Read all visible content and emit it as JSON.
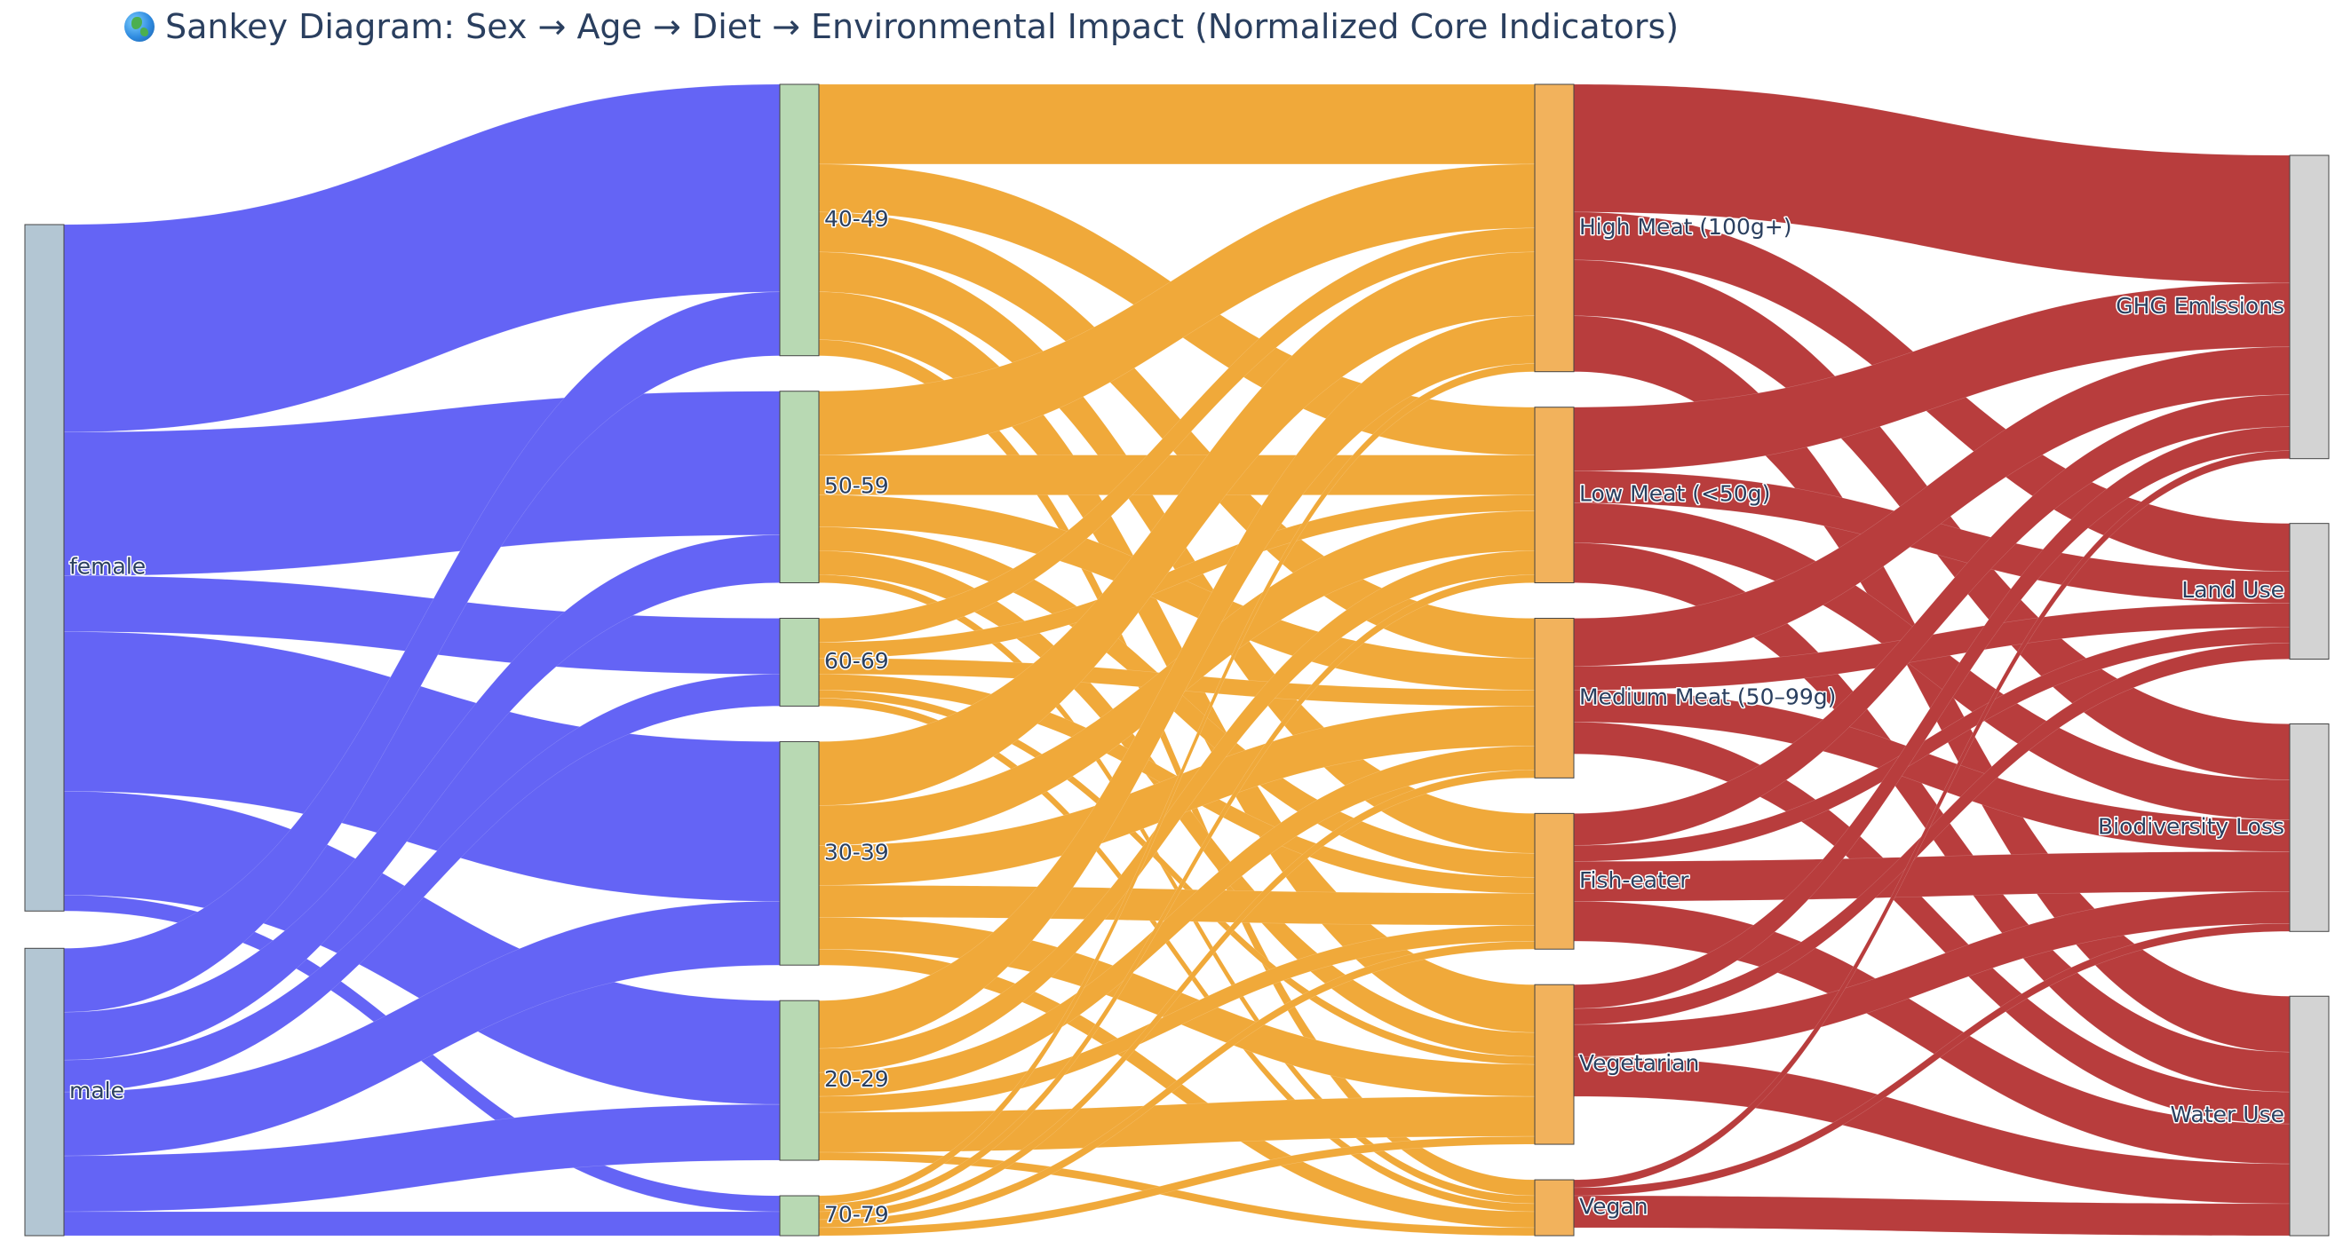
{
  "title": "Sankey Diagram: Sex → Age → Diet → Environmental Impact (Normalized Core Indicators)",
  "title_icon": "globe-icon",
  "chart_data": {
    "type": "sankey",
    "title": "Sankey Diagram: Sex → Age → Diet → Environmental Impact (Normalized Core Indicators)",
    "nodes": [
      {
        "id": "female",
        "label": "female",
        "column": 0,
        "color": "#b3c6d3"
      },
      {
        "id": "male",
        "label": "male",
        "column": 0,
        "color": "#b3c6d3"
      },
      {
        "id": "40-49",
        "label": "40-49",
        "column": 1,
        "color": "#b8d9b3"
      },
      {
        "id": "50-59",
        "label": "50-59",
        "column": 1,
        "color": "#b8d9b3"
      },
      {
        "id": "60-69",
        "label": "60-69",
        "column": 1,
        "color": "#b8d9b3"
      },
      {
        "id": "30-39",
        "label": "30-39",
        "column": 1,
        "color": "#b8d9b3"
      },
      {
        "id": "20-29",
        "label": "20-29",
        "column": 1,
        "color": "#b8d9b3"
      },
      {
        "id": "70-79",
        "label": "70-79",
        "column": 1,
        "color": "#b8d9b3"
      },
      {
        "id": "high",
        "label": "High Meat (100g+)",
        "column": 2,
        "color": "#f2b25c"
      },
      {
        "id": "low",
        "label": "Low Meat (<50g)",
        "column": 2,
        "color": "#f2b25c"
      },
      {
        "id": "medium",
        "label": "Medium Meat (50–99g)",
        "column": 2,
        "color": "#f2b25c"
      },
      {
        "id": "fish",
        "label": "Fish-eater",
        "column": 2,
        "color": "#f2b25c"
      },
      {
        "id": "veg",
        "label": "Vegetarian",
        "column": 2,
        "color": "#f2b25c"
      },
      {
        "id": "vegan",
        "label": "Vegan",
        "column": 2,
        "color": "#f2b25c"
      },
      {
        "id": "ghg",
        "label": "GHG Emissions",
        "column": 3,
        "color": "#d3d3d3"
      },
      {
        "id": "land",
        "label": "Land Use",
        "column": 3,
        "color": "#d3d3d3"
      },
      {
        "id": "bio",
        "label": "Biodiversity Loss",
        "column": 3,
        "color": "#d3d3d3"
      },
      {
        "id": "water",
        "label": "Water Use",
        "column": 3,
        "color": "#d3d3d3"
      }
    ],
    "link_colors": {
      "sex_to_age": "#6464f5",
      "age_to_diet": "#f0a93a",
      "diet_to_impact": "#b83d3d"
    },
    "links": [
      {
        "source": "female",
        "target": "40-49",
        "value": 26
      },
      {
        "source": "female",
        "target": "50-59",
        "value": 18
      },
      {
        "source": "female",
        "target": "60-69",
        "value": 7
      },
      {
        "source": "female",
        "target": "30-39",
        "value": 20
      },
      {
        "source": "female",
        "target": "20-29",
        "value": 13
      },
      {
        "source": "female",
        "target": "70-79",
        "value": 2
      },
      {
        "source": "male",
        "target": "40-49",
        "value": 8
      },
      {
        "source": "male",
        "target": "50-59",
        "value": 6
      },
      {
        "source": "male",
        "target": "60-69",
        "value": 4
      },
      {
        "source": "male",
        "target": "30-39",
        "value": 8
      },
      {
        "source": "male",
        "target": "20-29",
        "value": 7
      },
      {
        "source": "male",
        "target": "70-79",
        "value": 3
      },
      {
        "source": "40-49",
        "target": "high",
        "value": 10
      },
      {
        "source": "40-49",
        "target": "low",
        "value": 6
      },
      {
        "source": "40-49",
        "target": "medium",
        "value": 5
      },
      {
        "source": "40-49",
        "target": "fish",
        "value": 5
      },
      {
        "source": "40-49",
        "target": "veg",
        "value": 6
      },
      {
        "source": "40-49",
        "target": "vegan",
        "value": 2
      },
      {
        "source": "50-59",
        "target": "high",
        "value": 8
      },
      {
        "source": "50-59",
        "target": "low",
        "value": 5
      },
      {
        "source": "50-59",
        "target": "medium",
        "value": 4
      },
      {
        "source": "50-59",
        "target": "fish",
        "value": 3
      },
      {
        "source": "50-59",
        "target": "veg",
        "value": 3
      },
      {
        "source": "50-59",
        "target": "vegan",
        "value": 1
      },
      {
        "source": "60-69",
        "target": "high",
        "value": 3
      },
      {
        "source": "60-69",
        "target": "low",
        "value": 2
      },
      {
        "source": "60-69",
        "target": "medium",
        "value": 2
      },
      {
        "source": "60-69",
        "target": "fish",
        "value": 2
      },
      {
        "source": "60-69",
        "target": "veg",
        "value": 1
      },
      {
        "source": "60-69",
        "target": "vegan",
        "value": 1
      },
      {
        "source": "30-39",
        "target": "high",
        "value": 8
      },
      {
        "source": "30-39",
        "target": "low",
        "value": 5
      },
      {
        "source": "30-39",
        "target": "medium",
        "value": 5
      },
      {
        "source": "30-39",
        "target": "fish",
        "value": 4
      },
      {
        "source": "30-39",
        "target": "veg",
        "value": 4
      },
      {
        "source": "30-39",
        "target": "vegan",
        "value": 2
      },
      {
        "source": "20-29",
        "target": "high",
        "value": 6
      },
      {
        "source": "20-29",
        "target": "low",
        "value": 3
      },
      {
        "source": "20-29",
        "target": "medium",
        "value": 3
      },
      {
        "source": "20-29",
        "target": "fish",
        "value": 2
      },
      {
        "source": "20-29",
        "target": "veg",
        "value": 5
      },
      {
        "source": "20-29",
        "target": "vegan",
        "value": 1
      },
      {
        "source": "70-79",
        "target": "high",
        "value": 1
      },
      {
        "source": "70-79",
        "target": "low",
        "value": 1
      },
      {
        "source": "70-79",
        "target": "medium",
        "value": 1
      },
      {
        "source": "70-79",
        "target": "fish",
        "value": 1
      },
      {
        "source": "70-79",
        "target": "veg",
        "value": 1
      },
      {
        "source": "high",
        "target": "ghg",
        "value": 16
      },
      {
        "source": "high",
        "target": "land",
        "value": 6
      },
      {
        "source": "high",
        "target": "bio",
        "value": 7
      },
      {
        "source": "high",
        "target": "water",
        "value": 7
      },
      {
        "source": "low",
        "target": "ghg",
        "value": 8
      },
      {
        "source": "low",
        "target": "land",
        "value": 4
      },
      {
        "source": "low",
        "target": "bio",
        "value": 5
      },
      {
        "source": "low",
        "target": "water",
        "value": 5
      },
      {
        "source": "medium",
        "target": "ghg",
        "value": 6
      },
      {
        "source": "medium",
        "target": "land",
        "value": 3
      },
      {
        "source": "medium",
        "target": "bio",
        "value": 4
      },
      {
        "source": "medium",
        "target": "water",
        "value": 4
      },
      {
        "source": "fish",
        "target": "ghg",
        "value": 4
      },
      {
        "source": "fish",
        "target": "land",
        "value": 2
      },
      {
        "source": "fish",
        "target": "bio",
        "value": 5
      },
      {
        "source": "fish",
        "target": "water",
        "value": 5
      },
      {
        "source": "veg",
        "target": "ghg",
        "value": 3
      },
      {
        "source": "veg",
        "target": "land",
        "value": 2
      },
      {
        "source": "veg",
        "target": "bio",
        "value": 4
      },
      {
        "source": "veg",
        "target": "water",
        "value": 5
      },
      {
        "source": "vegan",
        "target": "ghg",
        "value": 1
      },
      {
        "source": "vegan",
        "target": "bio",
        "value": 1
      },
      {
        "source": "vegan",
        "target": "water",
        "value": 4
      }
    ]
  }
}
